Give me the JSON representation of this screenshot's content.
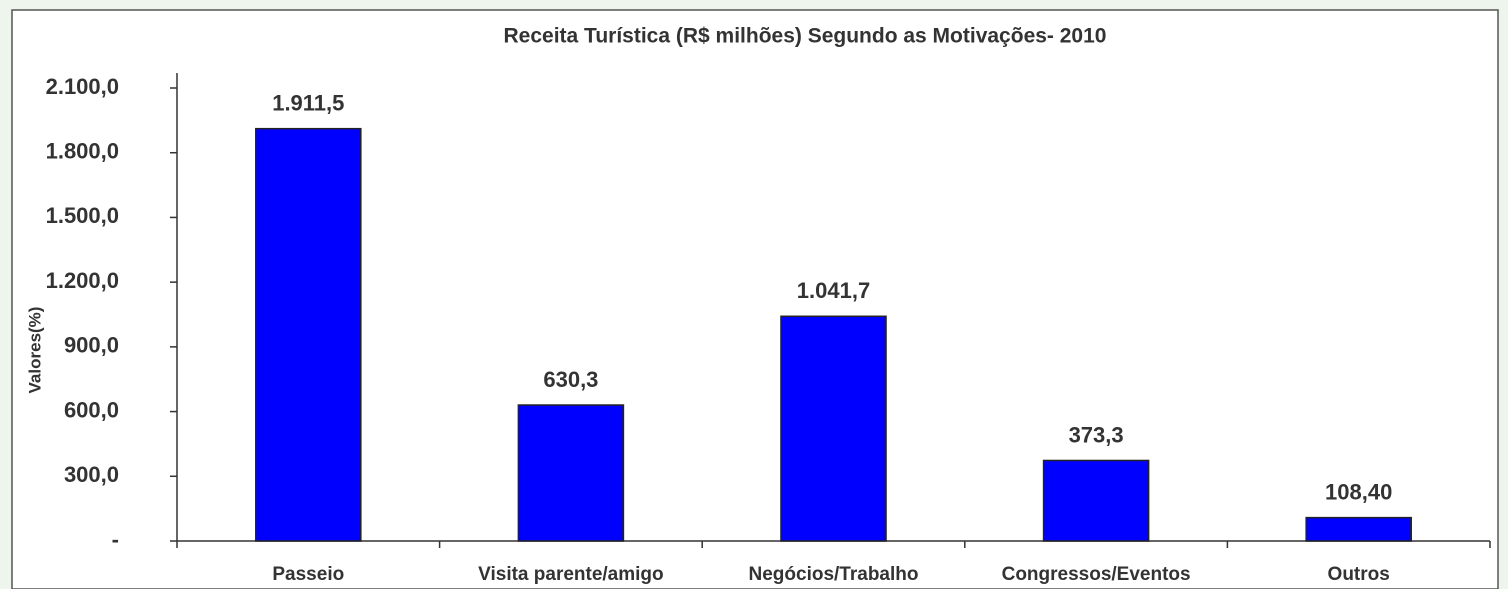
{
  "chart_data": {
    "type": "bar",
    "title": "Receita Turística (R$ milhões) Segundo as Motivações- 2010",
    "y_label": "Valores(%)",
    "categories": [
      "Passeio",
      "Visita parente/amigo",
      "Negócios/Trabalho",
      "Congressos/Eventos",
      "Outros"
    ],
    "values": [
      1911.5,
      630.3,
      1041.7,
      373.3,
      108.4
    ],
    "value_labels": [
      "1.911,5",
      "630,3",
      "1.041,7",
      "373,3",
      "108,40"
    ],
    "color": "#0000ff",
    "ylim": [
      0,
      2100
    ],
    "yticks": [
      {
        "value": 0,
        "label": "-"
      },
      {
        "value": 300,
        "label": "300,0"
      },
      {
        "value": 600,
        "label": "600,0"
      },
      {
        "value": 900,
        "label": "900,0"
      },
      {
        "value": 1200,
        "label": "1.200,0"
      },
      {
        "value": 1500,
        "label": "1.500,0"
      },
      {
        "value": 1800,
        "label": "1.800,0"
      },
      {
        "value": 2100,
        "label": "2.100,0"
      }
    ],
    "grid": false
  }
}
